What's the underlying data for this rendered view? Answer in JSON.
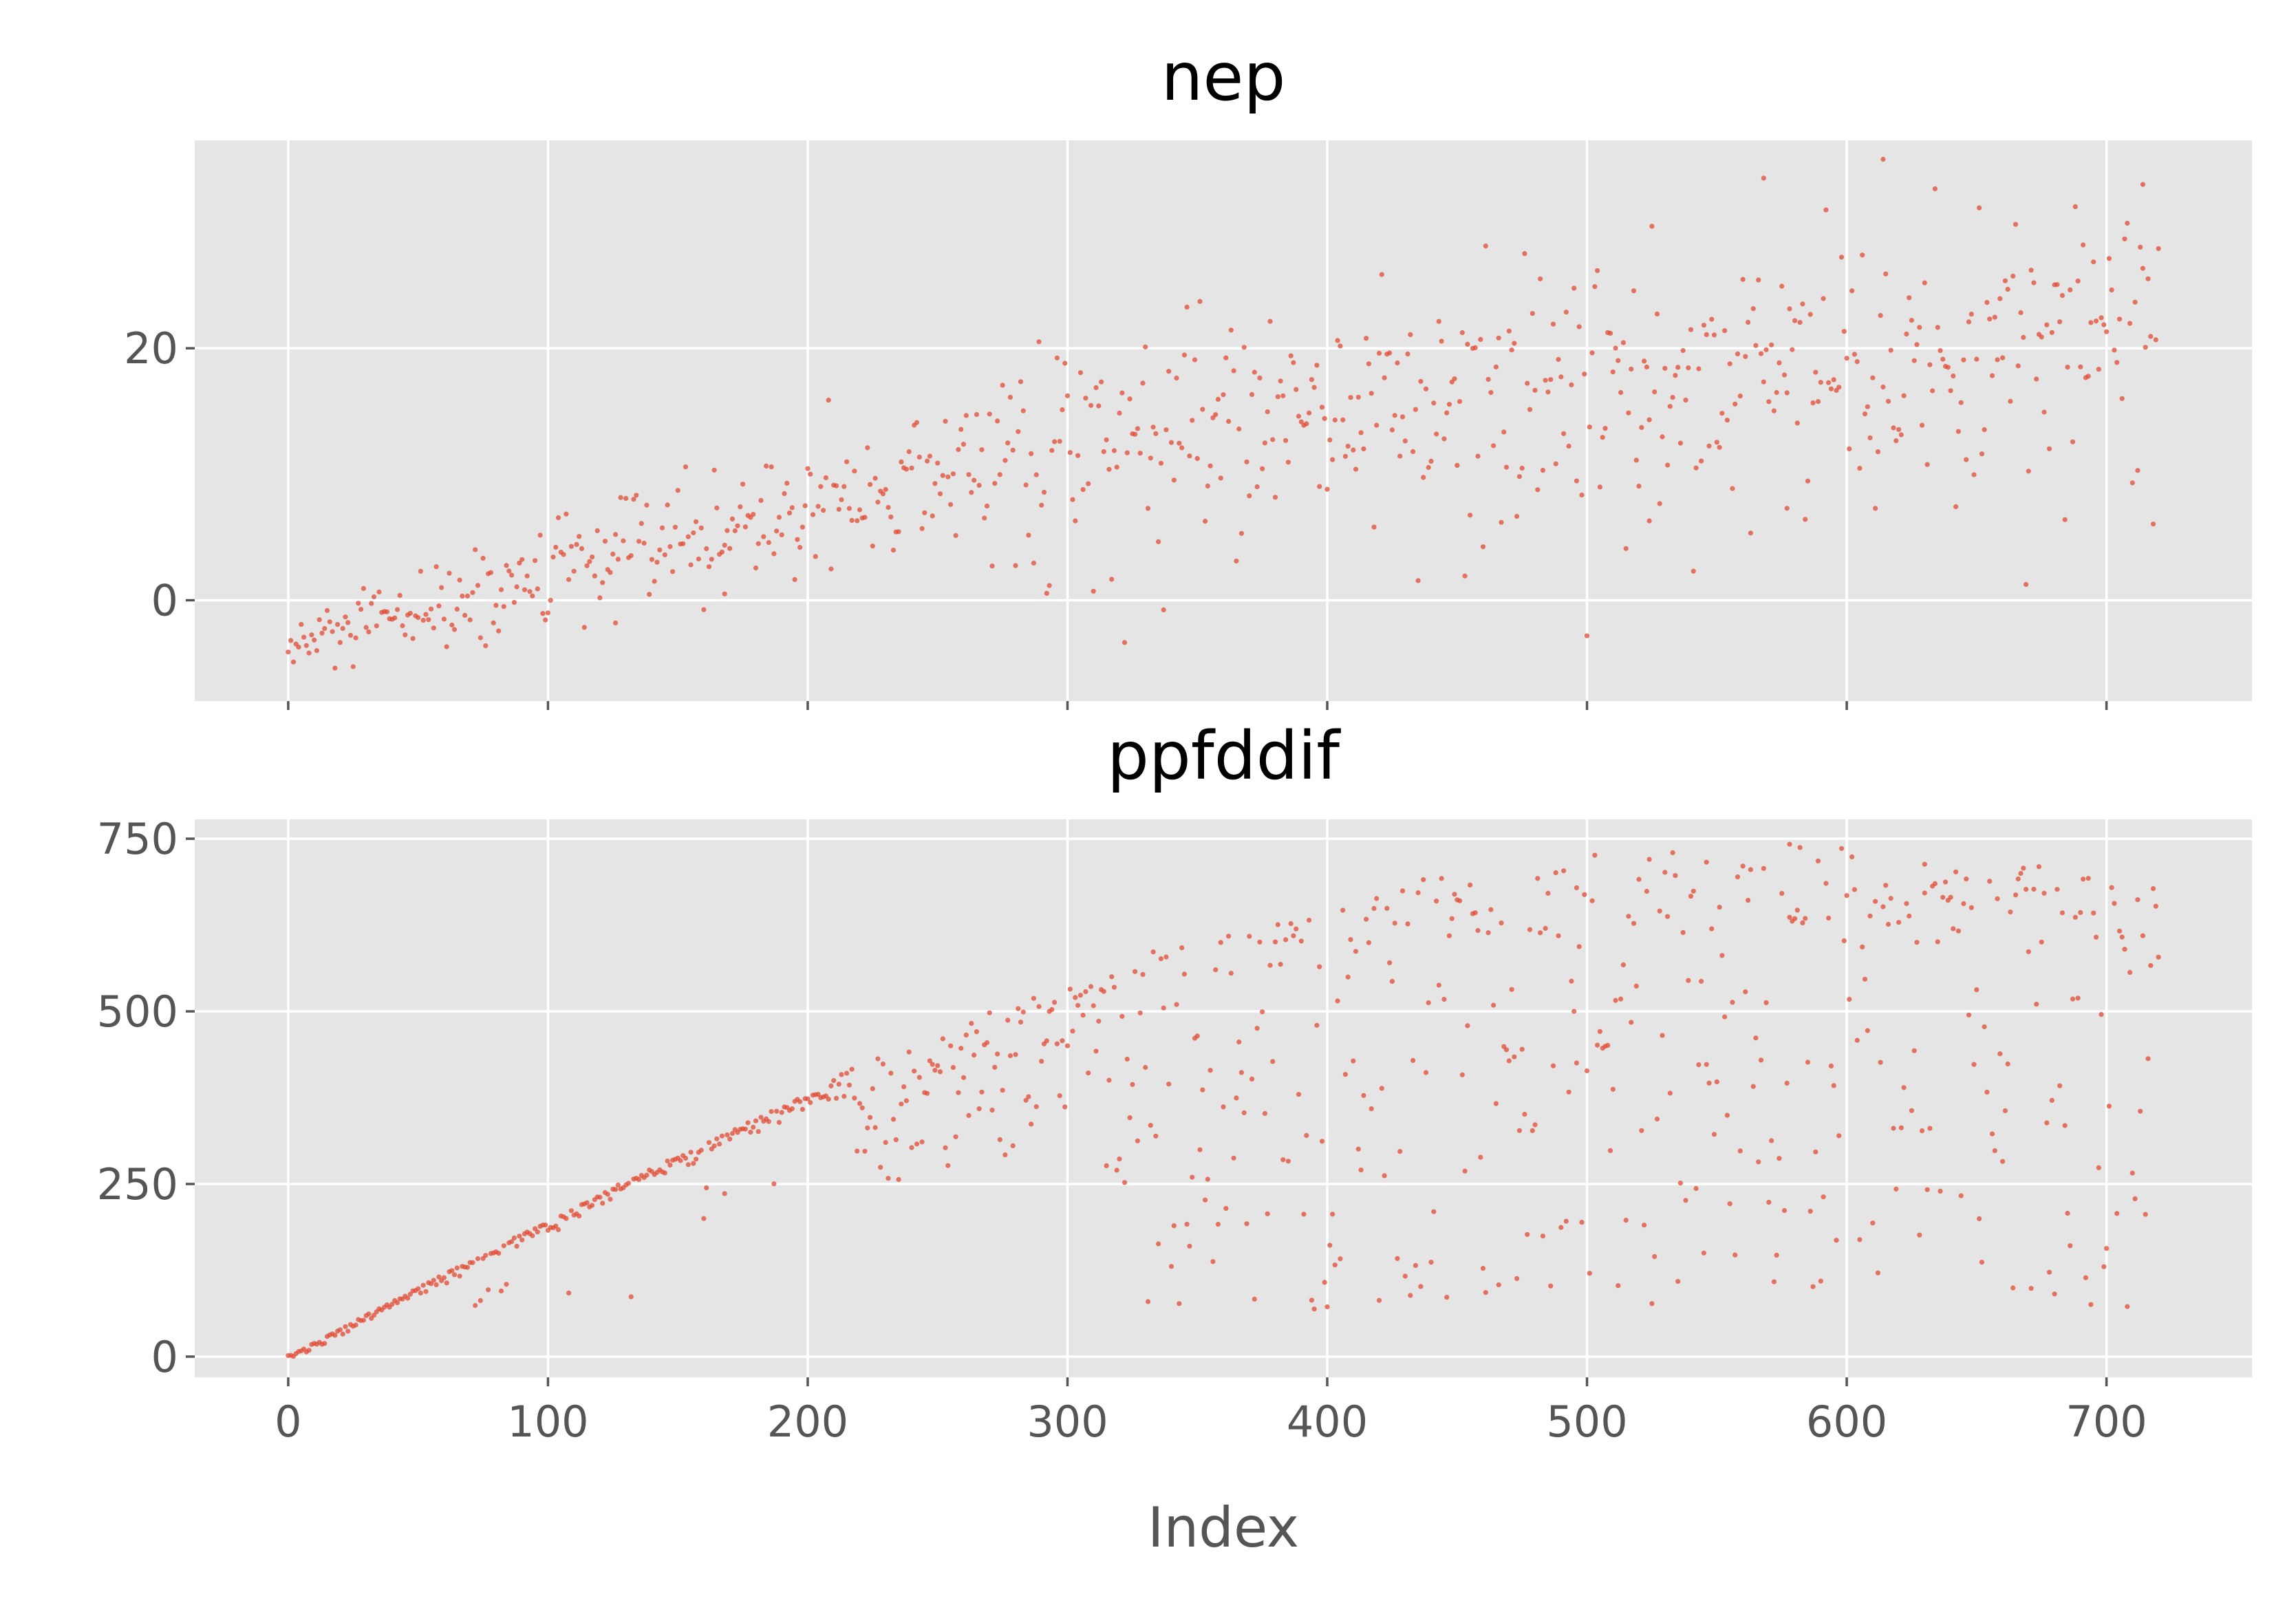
{
  "chart_data": [
    {
      "type": "scatter",
      "title": "nep",
      "xlabel": "",
      "ylabel": "",
      "xlim": [
        -36,
        756
      ],
      "ylim": [
        -8,
        36.5
      ],
      "xticks": [
        0,
        100,
        200,
        300,
        400,
        500,
        600,
        700
      ],
      "yticks": [
        0,
        20
      ],
      "ytick_labels": [
        "0",
        "20"
      ],
      "grid": true,
      "shared_x_with_next": true,
      "series": [
        {
          "n_points": 721,
          "color": "#E24A33",
          "trend": {
            "early_end": 300,
            "early_start": -4,
            "early_end_value": 13,
            "late_end_value": 22,
            "spread_start": 1.5,
            "spread_end": 6
          },
          "notable_points": [
            {
              "x": 126,
              "y": -1.8
            },
            {
              "x": 168,
              "y": 0.5
            },
            {
              "x": 614,
              "y": 35
            },
            {
              "x": 714,
              "y": 33
            },
            {
              "x": 568,
              "y": 33.5
            },
            {
              "x": 524,
              "y": 6.3
            },
            {
              "x": 577,
              "y": 7.3
            }
          ]
        }
      ]
    },
    {
      "type": "scatter",
      "title": "ppfddif",
      "xlabel": "Index",
      "ylabel": "",
      "xlim": [
        -36,
        756
      ],
      "ylim": [
        -30,
        778
      ],
      "xticks": [
        0,
        100,
        200,
        300,
        400,
        500,
        600,
        700
      ],
      "xtick_labels": [
        "0",
        "100",
        "200",
        "300",
        "400",
        "500",
        "600",
        "700"
      ],
      "yticks": [
        0,
        250,
        500,
        750
      ],
      "ytick_labels": [
        "0",
        "250",
        "500",
        "750"
      ],
      "grid": true,
      "series": [
        {
          "n_points": 721,
          "color": "#E24A33",
          "trend": {
            "tight_until": 210,
            "peak_envelope": 740,
            "envelope_peak_x": 570
          },
          "notable_points": [
            {
              "x": 578,
              "y": 742
            },
            {
              "x": 630,
              "y": 713
            },
            {
              "x": 546,
              "y": 716
            },
            {
              "x": 496,
              "y": 679
            }
          ]
        }
      ]
    }
  ]
}
